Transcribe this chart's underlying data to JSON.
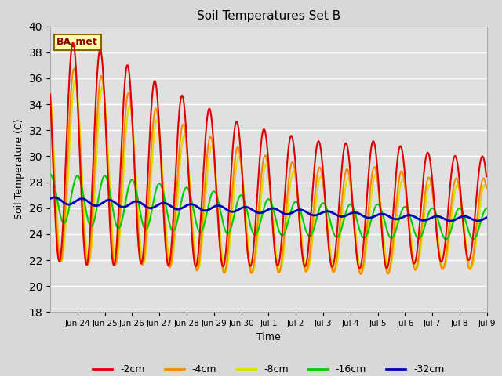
{
  "title": "Soil Temperatures Set B",
  "xlabel": "Time",
  "ylabel": "Soil Temperature (C)",
  "ylim": [
    18,
    40
  ],
  "yticks": [
    18,
    20,
    22,
    24,
    26,
    28,
    30,
    32,
    34,
    36,
    38,
    40
  ],
  "annotation": "BA_met",
  "bg_color": "#d8d8d8",
  "plot_bg_color": "#e0e0e0",
  "colors": {
    "-2cm": "#dd0000",
    "-4cm": "#ff8800",
    "-8cm": "#dddd00",
    "-16cm": "#00cc00",
    "-32cm": "#0000bb"
  },
  "linewidths": {
    "-2cm": 1.5,
    "-4cm": 1.5,
    "-8cm": 1.5,
    "-16cm": 1.5,
    "-32cm": 2.0
  },
  "n_days": 16,
  "n_pts_per_day": 48,
  "tick_positions": [
    1,
    2,
    3,
    4,
    5,
    6,
    7,
    8,
    9,
    10,
    11,
    12,
    13,
    14,
    15,
    16
  ],
  "tick_labels": [
    "Jun 24",
    "Jun 25",
    "Jun 26",
    "Jun 27",
    "Jun 28",
    "Jun 29",
    "Jun 30",
    "Jul 1",
    "Jul 2",
    "Jul 3",
    "Jul 4",
    "Jul 5",
    "Jul 6",
    "Jul 7",
    "Jul 8",
    "Jul 9"
  ],
  "means_2cm": [
    30.5,
    30.2,
    29.8,
    29.3,
    28.6,
    28.0,
    27.5,
    27.0,
    26.8,
    26.5,
    26.3,
    26.2,
    26.2,
    26.2,
    26.0,
    26.0
  ],
  "amps_2cm": [
    8.5,
    8.5,
    8.3,
    7.5,
    7.0,
    6.5,
    6.0,
    5.5,
    5.2,
    5.0,
    4.8,
    4.8,
    5.0,
    4.5,
    4.2,
    4.0
  ],
  "means_4cm": [
    29.5,
    29.2,
    28.8,
    28.2,
    27.5,
    26.8,
    26.2,
    25.8,
    25.5,
    25.3,
    25.1,
    25.0,
    25.0,
    25.0,
    24.8,
    24.8
  ],
  "amps_4cm": [
    7.5,
    7.5,
    7.3,
    6.5,
    6.0,
    5.5,
    5.2,
    4.8,
    4.5,
    4.2,
    4.0,
    4.0,
    4.2,
    3.8,
    3.5,
    3.5
  ],
  "means_8cm": [
    29.0,
    28.8,
    28.5,
    27.8,
    27.2,
    26.5,
    25.9,
    25.5,
    25.2,
    25.0,
    24.8,
    24.7,
    24.8,
    24.8,
    24.6,
    24.6
  ],
  "amps_8cm": [
    7.0,
    7.0,
    6.8,
    6.0,
    5.5,
    5.0,
    4.8,
    4.4,
    4.1,
    3.8,
    3.6,
    3.6,
    3.8,
    3.4,
    3.2,
    3.2
  ],
  "means_16cm": [
    26.8,
    26.6,
    26.5,
    26.3,
    26.1,
    25.9,
    25.7,
    25.5,
    25.3,
    25.2,
    25.1,
    25.0,
    25.0,
    24.9,
    24.8,
    24.8
  ],
  "amps_16cm": [
    1.8,
    1.9,
    2.0,
    1.9,
    1.8,
    1.7,
    1.6,
    1.5,
    1.4,
    1.3,
    1.3,
    1.3,
    1.3,
    1.2,
    1.2,
    1.2
  ],
  "means_32cm": [
    26.6,
    26.5,
    26.4,
    26.3,
    26.2,
    26.1,
    26.0,
    25.9,
    25.8,
    25.7,
    25.6,
    25.5,
    25.4,
    25.3,
    25.2,
    25.2
  ],
  "amps_32cm": [
    0.25,
    0.25,
    0.25,
    0.25,
    0.22,
    0.22,
    0.22,
    0.2,
    0.2,
    0.2,
    0.18,
    0.18,
    0.18,
    0.18,
    0.18,
    0.18
  ],
  "phase_hours": {
    "-2cm": 14.0,
    "-4cm": 15.0,
    "-8cm": 16.0,
    "-16cm": 18.0,
    "-32cm": 22.0
  }
}
